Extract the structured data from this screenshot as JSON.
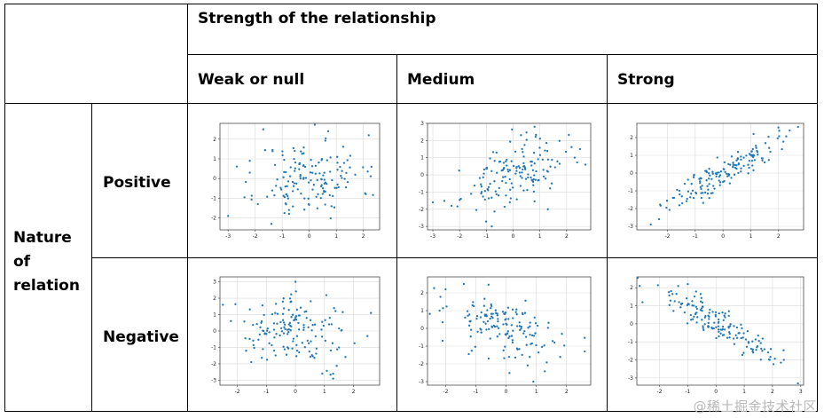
{
  "header": {
    "strength_title": "Strength of the relationship",
    "columns": [
      "Weak or null",
      "Medium",
      "Strong"
    ]
  },
  "rows": {
    "nature_label": "Nature\nof\nrelation",
    "positive": "Positive",
    "negative": "Negative"
  },
  "watermark": "@稀土掘金技术社区",
  "colors": {
    "point": "#1f77b4",
    "grid": "#d9d9d9",
    "frame": "#000000"
  },
  "chart_data": [
    {
      "id": "weak-positive",
      "type": "scatter",
      "relation": "positive",
      "strength": "weak",
      "xlim": [
        -3.3,
        2.6
      ],
      "ylim": [
        -2.6,
        2.8
      ],
      "xticks": [
        -3,
        -2,
        -1,
        0,
        1,
        2
      ],
      "yticks": [
        -2,
        -1,
        0,
        1,
        2
      ],
      "n": 150,
      "corr": 0.1,
      "seed": 11,
      "approx_points": [
        [
          -3.0,
          -1.9
        ],
        [
          -1.7,
          2.5
        ],
        [
          -1.4,
          -2.3
        ],
        [
          2.3,
          0.6
        ],
        [
          0.7,
          2.4
        ],
        [
          -2.2,
          0.9
        ],
        [
          1.7,
          0.2
        ]
      ]
    },
    {
      "id": "medium-positive",
      "type": "scatter",
      "relation": "positive",
      "strength": "medium",
      "xlim": [
        -3.2,
        2.9
      ],
      "ylim": [
        -3.2,
        3.0
      ],
      "xticks": [
        -3,
        -2,
        -1,
        0,
        1,
        2
      ],
      "yticks": [
        -3,
        -2,
        -1,
        0,
        1,
        2,
        3
      ],
      "n": 150,
      "corr": 0.5,
      "seed": 23,
      "approx_points": [
        [
          -3.0,
          -1.6
        ],
        [
          -0.8,
          -3.0
        ],
        [
          0.8,
          2.8
        ],
        [
          2.7,
          0.6
        ],
        [
          2.5,
          1.5
        ],
        [
          -2.3,
          -1.8
        ],
        [
          1.3,
          -2.0
        ]
      ]
    },
    {
      "id": "strong-positive",
      "type": "scatter",
      "relation": "positive",
      "strength": "strong",
      "xlim": [
        -3.1,
        2.9
      ],
      "ylim": [
        -3.2,
        2.8
      ],
      "xticks": [
        -2,
        -1,
        0,
        1,
        2
      ],
      "yticks": [
        -3,
        -2,
        -1,
        0,
        1,
        2
      ],
      "n": 150,
      "corr": 0.9,
      "seed": 37,
      "approx_points": [
        [
          -2.6,
          -2.9
        ],
        [
          -2.3,
          -2.6
        ],
        [
          2.7,
          2.6
        ],
        [
          2.4,
          2.4
        ],
        [
          1.1,
          2.2
        ],
        [
          -1.8,
          -1.4
        ]
      ]
    },
    {
      "id": "weak-negative",
      "type": "scatter",
      "relation": "negative",
      "strength": "weak",
      "xlim": [
        -2.6,
        2.9
      ],
      "ylim": [
        -3.3,
        3.3
      ],
      "xticks": [
        -2,
        -1,
        0,
        1,
        2
      ],
      "yticks": [
        -3,
        -2,
        -1,
        0,
        1,
        2,
        3
      ],
      "n": 150,
      "corr": -0.1,
      "seed": 41,
      "approx_points": [
        [
          -2.5,
          1.6
        ],
        [
          0.0,
          3.0
        ],
        [
          2.6,
          1.1
        ],
        [
          1.3,
          -2.9
        ],
        [
          1.3,
          -2.6
        ],
        [
          -1.7,
          -1.2
        ]
      ]
    },
    {
      "id": "medium-negative",
      "type": "scatter",
      "relation": "negative",
      "strength": "medium",
      "xlim": [
        -2.6,
        2.8
      ],
      "ylim": [
        -3.2,
        2.9
      ],
      "xticks": [
        -2,
        -1,
        0,
        1,
        2
      ],
      "yticks": [
        -3,
        -2,
        -1,
        0,
        1,
        2
      ],
      "n": 150,
      "corr": -0.5,
      "seed": 53,
      "approx_points": [
        [
          -2.2,
          1.0
        ],
        [
          -2.0,
          2.2
        ],
        [
          -1.4,
          2.5
        ],
        [
          2.6,
          -1.3
        ],
        [
          0.9,
          -3.0
        ],
        [
          -2.1,
          -0.7
        ]
      ]
    },
    {
      "id": "strong-negative",
      "type": "scatter",
      "relation": "negative",
      "strength": "strong",
      "xlim": [
        -2.8,
        3.1
      ],
      "ylim": [
        -3.4,
        2.6
      ],
      "xticks": [
        -2,
        -1,
        0,
        1,
        2,
        3
      ],
      "yticks": [
        -3,
        -2,
        -1,
        0,
        1,
        2
      ],
      "n": 150,
      "corr": -0.9,
      "seed": 67,
      "approx_points": [
        [
          -2.7,
          2.1
        ],
        [
          -2.6,
          1.2
        ],
        [
          2.9,
          -3.3
        ],
        [
          2.4,
          -2.0
        ],
        [
          1.9,
          -2.0
        ],
        [
          -1.0,
          2.2
        ]
      ]
    }
  ]
}
